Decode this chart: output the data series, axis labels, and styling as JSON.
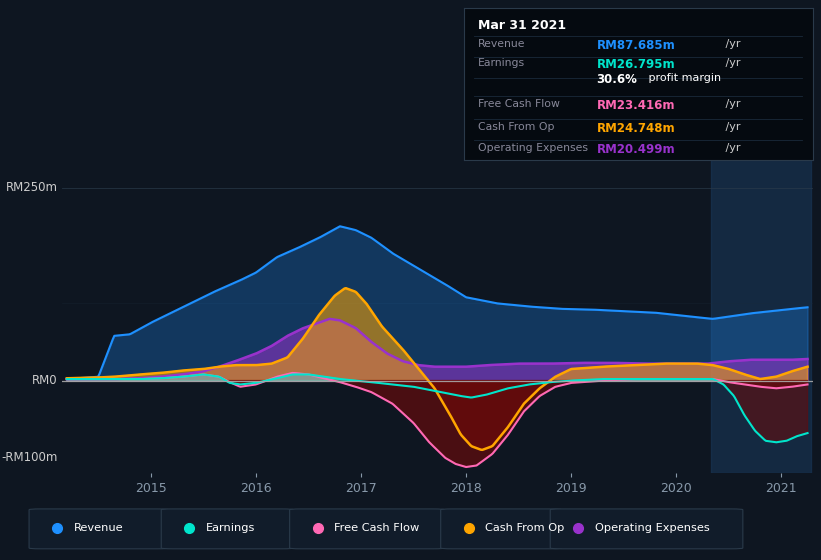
{
  "bg_color": "#0e1621",
  "plot_bg_color": "#0e1621",
  "revenue_color": "#1e90ff",
  "earnings_color": "#00e5cc",
  "fcf_color": "#ff69b4",
  "cashop_color": "#ffa500",
  "opex_color": "#9932cc",
  "negative_fill_color": "#6b0a0a",
  "ylim": [
    -120,
    290
  ],
  "legend": [
    {
      "label": "Revenue",
      "color": "#1e90ff"
    },
    {
      "label": "Earnings",
      "color": "#00e5cc"
    },
    {
      "label": "Free Cash Flow",
      "color": "#ff69b4"
    },
    {
      "label": "Cash From Op",
      "color": "#ffa500"
    },
    {
      "label": "Operating Expenses",
      "color": "#9932cc"
    }
  ]
}
